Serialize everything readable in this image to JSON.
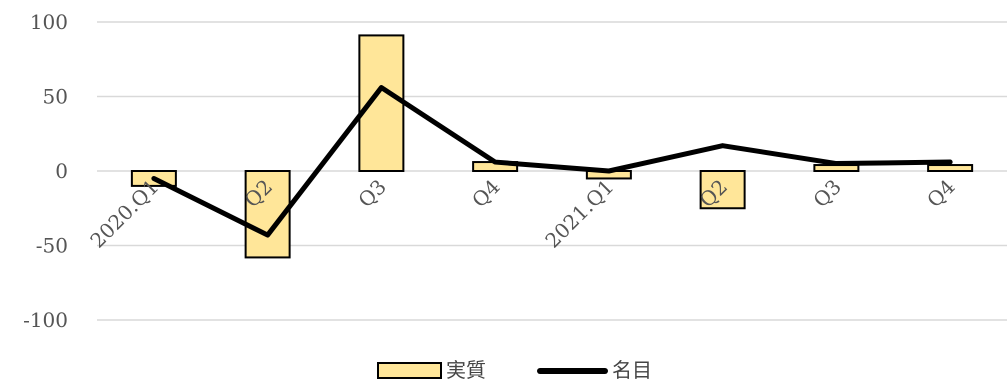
{
  "chart_data": {
    "type": "bar",
    "categories": [
      "2020.Q1",
      "Q2",
      "Q3",
      "Q4",
      "2021.Q1",
      "Q2",
      "Q3",
      "Q4"
    ],
    "series": [
      {
        "name": "実質",
        "type": "bar",
        "color": "#FFE699",
        "stroke": "#000000",
        "values": [
          -10,
          -58,
          91,
          6,
          -5,
          -25,
          4,
          4
        ]
      },
      {
        "name": "名目",
        "type": "line",
        "color": "#000000",
        "values": [
          -5,
          -43,
          56,
          6,
          0,
          17,
          5,
          6
        ]
      }
    ],
    "ylim": [
      -100,
      100
    ],
    "yticks": [
      100,
      50,
      0,
      -50,
      -100
    ],
    "grid": true,
    "legend_position": "bottom"
  }
}
